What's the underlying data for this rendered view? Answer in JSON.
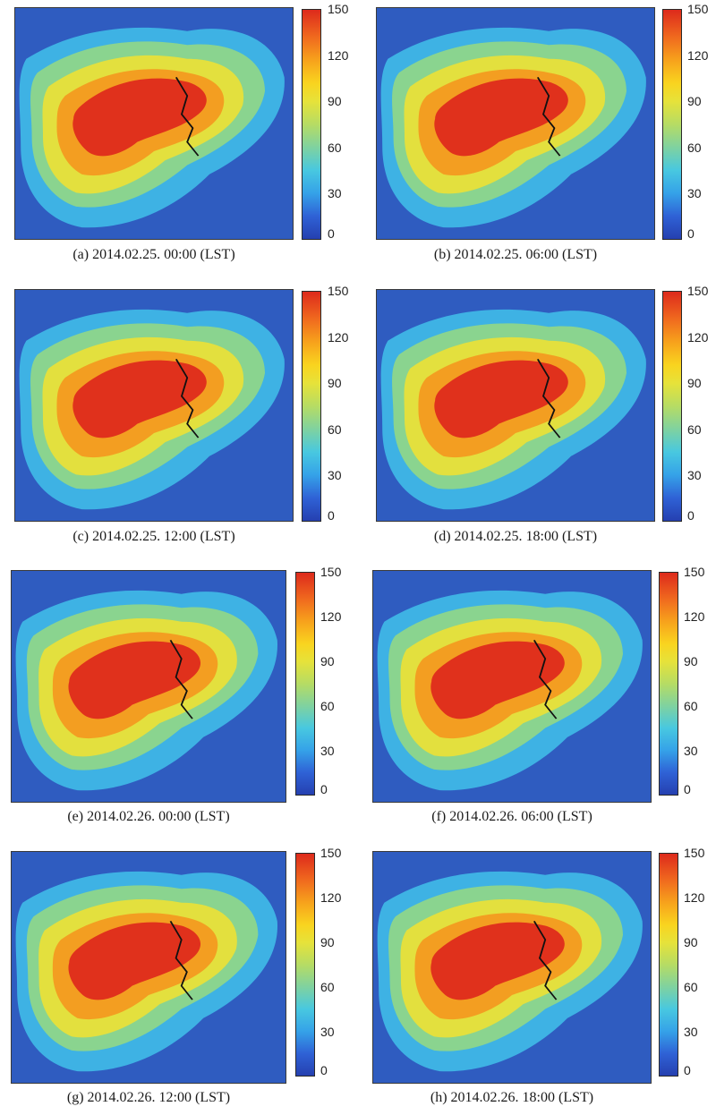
{
  "figure": {
    "colorbar": {
      "ticks": [
        "150",
        "120",
        "90",
        "60",
        "30",
        "0"
      ],
      "range": [
        0,
        150
      ],
      "colors": [
        "#2540b0",
        "#2f62d6",
        "#35a2e8",
        "#48c8e0",
        "#7fd2a0",
        "#b6dc64",
        "#e6e23a",
        "#f9d41f",
        "#f7a21c",
        "#f06a1e",
        "#dd2a1c"
      ]
    },
    "panels": [
      {
        "caption": "(a) 2014.02.25. 00:00 (LST)"
      },
      {
        "caption": "(b) 2014.02.25. 06:00 (LST)"
      },
      {
        "caption": "(c) 2014.02.25. 12:00 (LST)"
      },
      {
        "caption": "(d) 2014.02.25. 18:00 (LST)"
      },
      {
        "caption": "(e) 2014.02.26. 00:00 (LST)"
      },
      {
        "caption": "(f) 2014.02.26. 06:00 (LST)"
      },
      {
        "caption": "(g) 2014.02.26. 12:00 (LST)"
      },
      {
        "caption": "(h) 2014.02.26. 18:00 (LST)"
      }
    ]
  }
}
